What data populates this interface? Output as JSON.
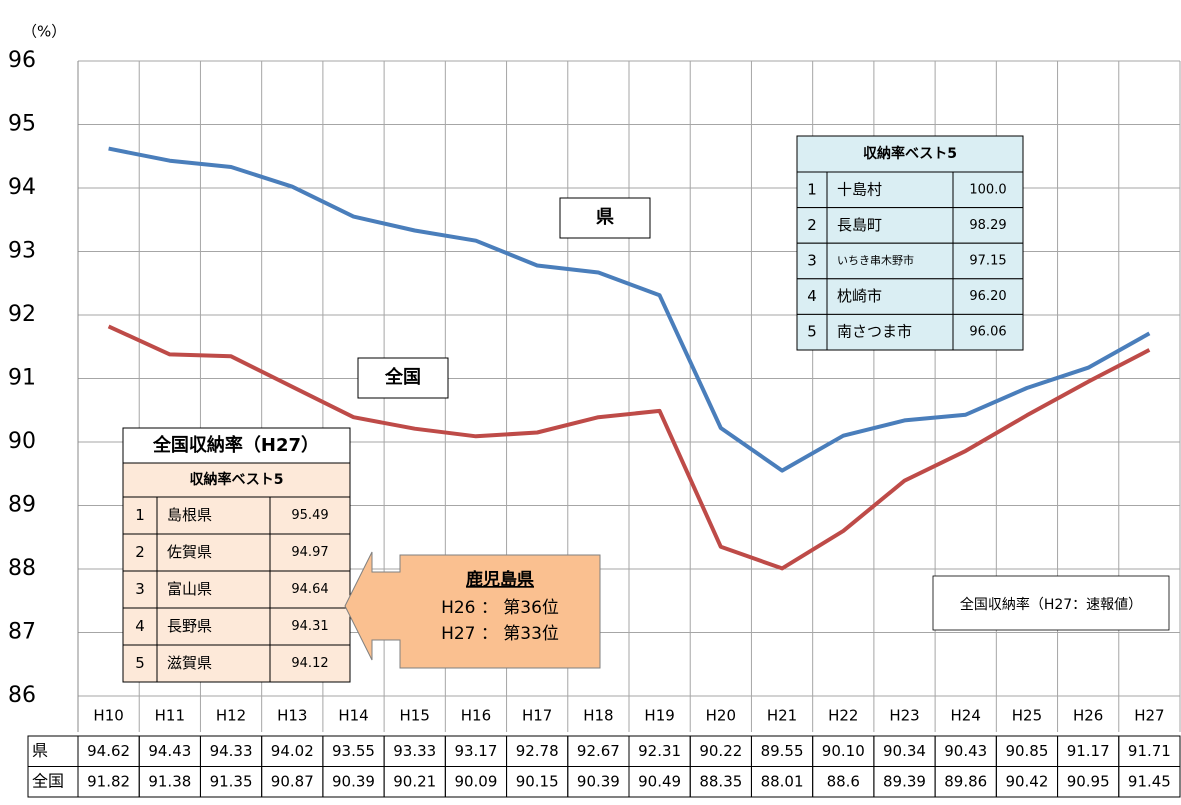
{
  "chart_data": {
    "type": "line",
    "y_unit_label": "（%）",
    "categories": [
      "H10",
      "H11",
      "H12",
      "H13",
      "H14",
      "H15",
      "H16",
      "H17",
      "H18",
      "H19",
      "H20",
      "H21",
      "H22",
      "H23",
      "H24",
      "H25",
      "H26",
      "H27"
    ],
    "series": [
      {
        "name": "県",
        "color": "#4a7ebb",
        "values": [
          94.62,
          94.43,
          94.33,
          94.02,
          93.55,
          93.33,
          93.17,
          92.78,
          92.67,
          92.31,
          90.22,
          89.55,
          90.1,
          90.34,
          90.43,
          90.85,
          91.17,
          91.71
        ],
        "value_labels": [
          "94.62",
          "94.43",
          "94.33",
          "94.02",
          "93.55",
          "93.33",
          "93.17",
          "92.78",
          "92.67",
          "92.31",
          "90.22",
          "89.55",
          "90.10",
          "90.34",
          "90.43",
          "90.85",
          "91.17",
          "91.71"
        ]
      },
      {
        "name": "全国",
        "color": "#be4b48",
        "values": [
          91.82,
          91.38,
          91.35,
          90.87,
          90.39,
          90.21,
          90.09,
          90.15,
          90.39,
          90.49,
          88.35,
          88.01,
          88.6,
          89.39,
          89.86,
          90.42,
          90.95,
          91.45
        ],
        "value_labels": [
          "91.82",
          "91.38",
          "91.35",
          "90.87",
          "90.39",
          "90.21",
          "90.09",
          "90.15",
          "90.39",
          "90.49",
          "88.35",
          "88.01",
          "88.6",
          "89.39",
          "89.86",
          "90.42",
          "90.95",
          "91.45"
        ]
      }
    ],
    "ylim": [
      86,
      96
    ],
    "yticks": [
      86,
      87,
      88,
      89,
      90,
      91,
      92,
      93,
      94,
      95,
      96
    ],
    "grid": true
  },
  "prefecture_best5": {
    "title": "収納率ベスト5",
    "rows": [
      [
        "1",
        "十島村",
        "100.0"
      ],
      [
        "2",
        "長島町",
        "98.29"
      ],
      [
        "3",
        "いちき串木野市",
        "97.15"
      ],
      [
        "4",
        "枕崎市",
        "96.20"
      ],
      [
        "5",
        "南さつま市",
        "96.06"
      ]
    ]
  },
  "national_best5": {
    "title": "全国収納率（H27）",
    "subtitle": "収納率ベスト5",
    "rows": [
      [
        "1",
        "島根県",
        "95.49"
      ],
      [
        "2",
        "佐賀県",
        "94.97"
      ],
      [
        "3",
        "富山県",
        "94.64"
      ],
      [
        "4",
        "長野県",
        "94.31"
      ],
      [
        "5",
        "滋賀県",
        "94.12"
      ]
    ]
  },
  "callout": {
    "title": "鹿児島県",
    "lines": [
      "H26 ： 第36位",
      "H27 ： 第33位"
    ]
  },
  "note": "全国収納率（H27：速報値）"
}
